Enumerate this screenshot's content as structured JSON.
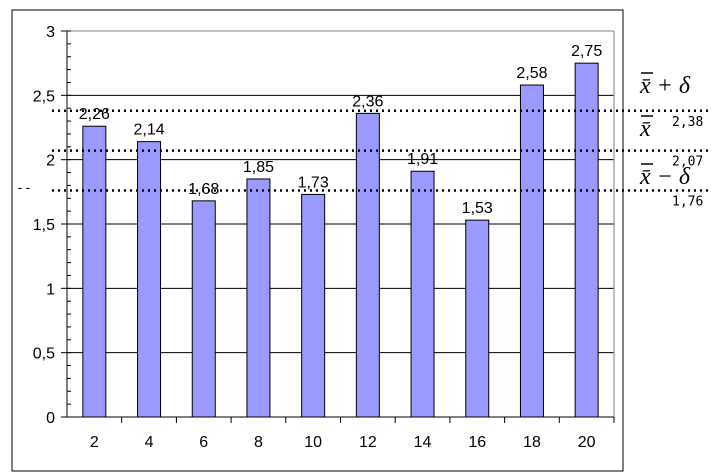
{
  "chart_data": {
    "type": "bar",
    "categories": [
      "2",
      "4",
      "6",
      "8",
      "10",
      "12",
      "14",
      "16",
      "18",
      "20"
    ],
    "values": [
      2.26,
      2.14,
      1.68,
      1.85,
      1.73,
      2.36,
      1.91,
      1.53,
      2.58,
      2.75
    ],
    "data_labels": [
      "2,26",
      "2,14",
      "1,68",
      "1,85",
      "1,73",
      "2,36",
      "1,91",
      "1,53",
      "2,58",
      "2,75"
    ],
    "ylim": [
      0,
      3
    ],
    "y_ticks": [
      0,
      0.5,
      1,
      1.5,
      2,
      2.5,
      3
    ],
    "y_tick_labels": [
      "0",
      "0,5",
      "1",
      "1,5",
      "2",
      "2,5",
      "3"
    ],
    "grid": true,
    "bar_color": "#9999ff",
    "reference_lines": [
      {
        "value": 2.38,
        "label": "2,38",
        "formula": "x̄ + δ"
      },
      {
        "value": 2.07,
        "label": "2,07",
        "formula": "x̄"
      },
      {
        "value": 1.76,
        "label": "1,76",
        "formula": "x̄ − δ"
      }
    ],
    "extra_label": "--"
  }
}
